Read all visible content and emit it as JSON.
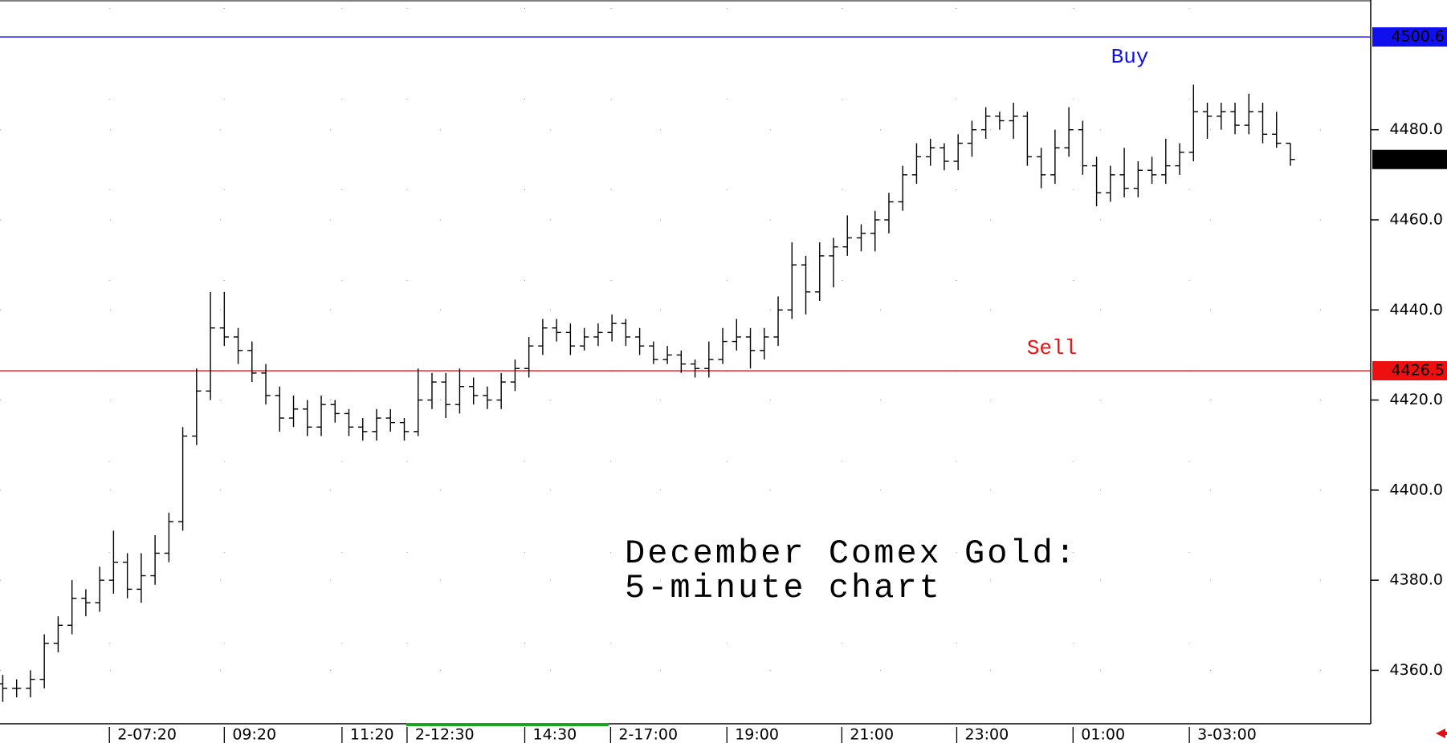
{
  "chart_data": {
    "type": "ohlc",
    "title": [
      "December Comex Gold:",
      "5-minute chart"
    ],
    "x": [
      0,
      1,
      2,
      3,
      4,
      5,
      6,
      7,
      8,
      9,
      10,
      11,
      12,
      13,
      14,
      15,
      16,
      17,
      18,
      19,
      20,
      21,
      22,
      23,
      24,
      25,
      26,
      27,
      28,
      29,
      30,
      31,
      32,
      33,
      34,
      35,
      36,
      37,
      38,
      39,
      40,
      41,
      42,
      43,
      44,
      45,
      46,
      47,
      48,
      49,
      50,
      51,
      52,
      53,
      54,
      55,
      56,
      57,
      58,
      59,
      60,
      61,
      62,
      63,
      64,
      65,
      66,
      67,
      68,
      69,
      70,
      71,
      72,
      73,
      74,
      75,
      76,
      77,
      78,
      79,
      80,
      81,
      82,
      83,
      84,
      85,
      86,
      87,
      88,
      89,
      90,
      91,
      92,
      93
    ],
    "open": [
      4357,
      4356,
      4356,
      4358,
      4366,
      4370,
      4376,
      4375,
      4380,
      4384,
      4378,
      4381,
      4386,
      4393,
      4412,
      4422,
      4436,
      4434,
      4431,
      4426,
      4421,
      4416,
      4418,
      4414,
      4419,
      4417,
      4414,
      4413,
      4416,
      4415,
      4413,
      4420,
      4424,
      4419,
      4423,
      4421,
      4420,
      4424,
      4427,
      4432,
      4436,
      4435,
      4432,
      4434,
      4435,
      4437,
      4434,
      4432,
      4429,
      4430,
      4428,
      4427,
      4429,
      4433,
      4434,
      4431,
      4434,
      4440,
      4450,
      4444,
      4452,
      4454,
      4456,
      4457,
      4460,
      4464,
      4470,
      4474,
      4476,
      4473,
      4477,
      4480,
      4483,
      4482,
      4483,
      4474,
      4470,
      4476,
      4480,
      4472,
      4466,
      4470,
      4467,
      4471,
      4470,
      4472,
      4475,
      4484,
      4483,
      4484,
      4481,
      4484,
      4479,
      4477
    ],
    "high": [
      4359,
      4358,
      4360,
      4368,
      4372,
      4380,
      4378,
      4383,
      4391,
      4386,
      4386,
      4390,
      4395,
      4414,
      4427,
      4444,
      4444,
      4436,
      4433,
      4428,
      4423,
      4421,
      4420,
      4421,
      4420,
      4418,
      4416,
      4418,
      4418,
      4416,
      4427,
      4426,
      4426,
      4427,
      4425,
      4423,
      4426,
      4429,
      4434,
      4438,
      4438,
      4437,
      4436,
      4437,
      4439,
      4438,
      4436,
      4433,
      4432,
      4431,
      4429,
      4433,
      4436,
      4438,
      4436,
      4436,
      4443,
      4455,
      4452,
      4455,
      4456,
      4461,
      4459,
      4462,
      4466,
      4472,
      4477,
      4478,
      4477,
      4479,
      4482,
      4485,
      4484,
      4486,
      4484,
      4476,
      4480,
      4485,
      4482,
      4474,
      4472,
      4476,
      4473,
      4474,
      4478,
      4477,
      4490,
      4486,
      4486,
      4486,
      4488,
      4486,
      4484,
      4477
    ],
    "low": [
      4353,
      4354,
      4354,
      4356,
      4364,
      4368,
      4372,
      4373,
      4377,
      4376,
      4375,
      4379,
      4384,
      4391,
      4410,
      4420,
      4432,
      4428,
      4424,
      4419,
      4413,
      4414,
      4412,
      4412,
      4415,
      4412,
      4411,
      4411,
      4413,
      4411,
      4412,
      4418,
      4416,
      4417,
      4419,
      4418,
      4418,
      4422,
      4425,
      4430,
      4433,
      4430,
      4431,
      4432,
      4433,
      4432,
      4430,
      4428,
      4428,
      4426,
      4425,
      4425,
      4428,
      4431,
      4427,
      4429,
      4432,
      4438,
      4439,
      4442,
      4445,
      4452,
      4453,
      4453,
      4457,
      4462,
      4468,
      4472,
      4471,
      4471,
      4474,
      4478,
      4480,
      4478,
      4472,
      4467,
      4468,
      4474,
      4470,
      4463,
      4464,
      4465,
      4465,
      4468,
      4468,
      4470,
      4473,
      4478,
      4480,
      4479,
      4479,
      4477,
      4476,
      4472
    ],
    "close": [
      4356,
      4356,
      4358,
      4366,
      4370,
      4376,
      4375,
      4380,
      4384,
      4378,
      4381,
      4386,
      4393,
      4412,
      4422,
      4436,
      4434,
      4431,
      4426,
      4421,
      4416,
      4418,
      4414,
      4419,
      4417,
      4414,
      4413,
      4416,
      4415,
      4413,
      4420,
      4424,
      4419,
      4423,
      4421,
      4420,
      4424,
      4427,
      4432,
      4436,
      4435,
      4432,
      4434,
      4435,
      4437,
      4434,
      4432,
      4429,
      4430,
      4428,
      4427,
      4429,
      4433,
      4434,
      4431,
      4434,
      4440,
      4450,
      4444,
      4452,
      4454,
      4456,
      4457,
      4460,
      4464,
      4470,
      4474,
      4476,
      4473,
      4477,
      4480,
      4483,
      4482,
      4483,
      4474,
      4470,
      4476,
      4480,
      4472,
      4466,
      4470,
      4467,
      4471,
      4470,
      4472,
      4475,
      4484,
      4483,
      4484,
      4481,
      4484,
      4479,
      4477,
      4473.4
    ],
    "color": "#000000",
    "xlim": [
      -0.2,
      98.8
    ],
    "xticks": [
      {
        "value": 7.7,
        "label": "2-07:20"
      },
      {
        "value": 16,
        "label": "09:20"
      },
      {
        "value": 24.5,
        "label": "11:20"
      },
      {
        "value": 29.2,
        "label": "2-12:30"
      },
      {
        "value": 37.7,
        "label": "14:30"
      },
      {
        "value": 43.9,
        "label": "2-17:00"
      },
      {
        "value": 52.3,
        "label": "19:00"
      },
      {
        "value": 60.6,
        "label": "21:00"
      },
      {
        "value": 68.9,
        "label": "23:00"
      },
      {
        "value": 77.3,
        "label": "01:00"
      },
      {
        "value": 85.7,
        "label": "3-03:00"
      }
    ],
    "ylim": [
      4348.5,
      4508.8
    ],
    "yticks": [
      {
        "value": 4360,
        "label": "4360.0"
      },
      {
        "value": 4380,
        "label": "4380.0"
      },
      {
        "value": 4400,
        "label": "4400.0"
      },
      {
        "value": 4420,
        "label": "4420.0"
      },
      {
        "value": 4440,
        "label": "4440.0"
      },
      {
        "value": 4460,
        "label": "4460.0"
      },
      {
        "value": 4480,
        "label": "4480.0"
      }
    ],
    "grid": true,
    "levels": [
      {
        "label": "Buy",
        "value": 4500.6,
        "color": "#1010ee"
      },
      {
        "label": "Sell",
        "value": 4426.5,
        "color": "#ee1010"
      }
    ]
  }
}
